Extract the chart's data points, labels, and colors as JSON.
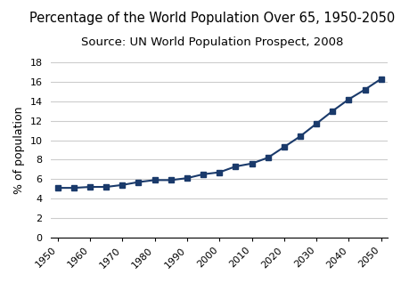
{
  "title": "Percentage of the World Population Over 65, 1950-2050",
  "subtitle": "Source: UN World Population Prospect, 2008",
  "ylabel": "% of population",
  "years": [
    1950,
    1955,
    1960,
    1965,
    1970,
    1975,
    1980,
    1985,
    1990,
    1995,
    2000,
    2005,
    2010,
    2015,
    2020,
    2025,
    2030,
    2035,
    2040,
    2045,
    2050
  ],
  "values": [
    5.1,
    5.1,
    5.2,
    5.2,
    5.4,
    5.7,
    5.9,
    5.9,
    6.1,
    6.5,
    6.7,
    7.3,
    7.6,
    8.2,
    9.3,
    10.4,
    11.7,
    13.0,
    14.2,
    15.2,
    16.3
  ],
  "line_color": "#1a3a6b",
  "marker": "s",
  "marker_size": 4,
  "xlim": [
    1948,
    2052
  ],
  "ylim": [
    0,
    18
  ],
  "xticks": [
    1950,
    1960,
    1970,
    1980,
    1990,
    2000,
    2010,
    2020,
    2030,
    2040,
    2050
  ],
  "yticks": [
    0,
    2,
    4,
    6,
    8,
    10,
    12,
    14,
    16,
    18
  ],
  "grid_color": "#cccccc",
  "bg_color": "#ffffff",
  "title_fontsize": 10.5,
  "subtitle_fontsize": 9.5,
  "label_fontsize": 9,
  "tick_fontsize": 8
}
